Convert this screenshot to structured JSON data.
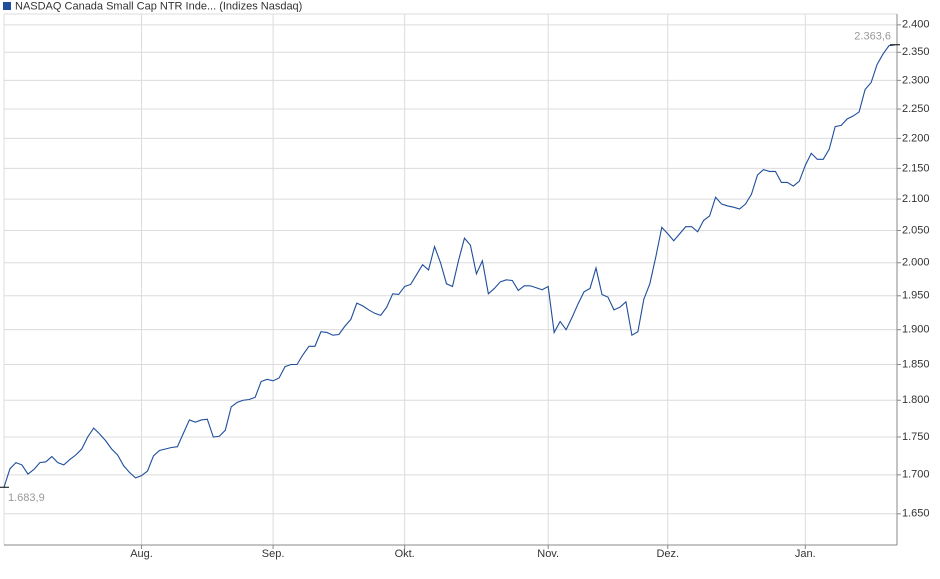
{
  "chart_data": {
    "type": "line",
    "title": "NASDAQ Canada Small Cap NTR Inde... (Indizes Nasdaq)",
    "color": "#1f4e9c",
    "log_scale": true,
    "grid": true,
    "categories": [
      null,
      null,
      null,
      null,
      null,
      null,
      null,
      null,
      null,
      null,
      null,
      null,
      null,
      null,
      null,
      null,
      null,
      null,
      null,
      null,
      null,
      null,
      null,
      "Aug.",
      null,
      null,
      null,
      null,
      null,
      null,
      null,
      null,
      null,
      null,
      null,
      null,
      null,
      null,
      null,
      null,
      null,
      null,
      null,
      null,
      null,
      "Sep.",
      null,
      null,
      null,
      null,
      null,
      null,
      null,
      null,
      null,
      null,
      null,
      null,
      null,
      null,
      null,
      null,
      null,
      null,
      null,
      null,
      null,
      "Okt.",
      null,
      null,
      null,
      null,
      null,
      null,
      null,
      null,
      null,
      null,
      null,
      null,
      null,
      null,
      null,
      null,
      null,
      null,
      null,
      null,
      null,
      null,
      null,
      "Nov.",
      null,
      null,
      null,
      null,
      null,
      null,
      null,
      null,
      null,
      null,
      null,
      null,
      null,
      null,
      null,
      null,
      null,
      null,
      null,
      "Dez.",
      null,
      null,
      null,
      null,
      null,
      null,
      null,
      null,
      null,
      null,
      null,
      null,
      null,
      null,
      null,
      null,
      null,
      null,
      null,
      null,
      null,
      null,
      "Jan.",
      null,
      null,
      null,
      null,
      null,
      null,
      null,
      null,
      null,
      null,
      null,
      null,
      null,
      null,
      null
    ],
    "values": [
      1683.9,
      1708,
      1716,
      1713,
      1701,
      1707,
      1716,
      1717,
      1724,
      1716,
      1713,
      1720,
      1726,
      1734,
      1750,
      1762,
      1754,
      1745,
      1734,
      1726,
      1712,
      1703,
      1696,
      1699,
      1705,
      1725,
      1732,
      1734,
      1736,
      1737,
      1755,
      1773,
      1770,
      1773,
      1774,
      1750,
      1751,
      1759,
      1791,
      1797,
      1800,
      1801,
      1804,
      1826,
      1829,
      1827,
      1831,
      1847,
      1850,
      1850,
      1864,
      1876,
      1876,
      1897,
      1896,
      1892,
      1893,
      1905,
      1915,
      1939,
      1935,
      1929,
      1924,
      1921,
      1933,
      1953,
      1952,
      1964,
      1967,
      1982,
      1997,
      1989,
      2025,
      2000,
      1968,
      1964,
      2003,
      2038,
      2027,
      1983,
      2003,
      1953,
      1961,
      1971,
      1974,
      1973,
      1958,
      1965,
      1965,
      1962,
      1959,
      1964,
      1896,
      1912,
      1900,
      1918,
      1938,
      1956,
      1961,
      1992,
      1952,
      1948,
      1929,
      1933,
      1941,
      1892,
      1897,
      1945,
      1968,
      2009,
      2055,
      2045,
      2034,
      2045,
      2056,
      2056,
      2048,
      2066,
      2073,
      2103,
      2092,
      2089,
      2087,
      2084,
      2092,
      2108,
      2139,
      2148,
      2145,
      2145,
      2127,
      2127,
      2121,
      2129,
      2155,
      2175,
      2165,
      2165,
      2182,
      2220,
      2222,
      2233,
      2238,
      2245,
      2284,
      2296,
      2328,
      2347,
      2362,
      2363.6
    ],
    "value_labels": [
      "1.683,9",
      null,
      null,
      null,
      null,
      null,
      null,
      null,
      null,
      null,
      null,
      null,
      null,
      null,
      null,
      null,
      null,
      null,
      null,
      null,
      null,
      null,
      null,
      null,
      null,
      null,
      null,
      null,
      null,
      null,
      null,
      null,
      null,
      null,
      null,
      null,
      null,
      null,
      null,
      null,
      null,
      null,
      null,
      null,
      null,
      null,
      null,
      null,
      null,
      null,
      null,
      null,
      null,
      null,
      null,
      null,
      null,
      null,
      null,
      null,
      null,
      null,
      null,
      null,
      null,
      null,
      null,
      null,
      null,
      null,
      null,
      null,
      null,
      null,
      null,
      null,
      null,
      null,
      null,
      null,
      null,
      null,
      null,
      null,
      null,
      null,
      null,
      null,
      null,
      null,
      null,
      null,
      null,
      null,
      null,
      null,
      null,
      null,
      null,
      null,
      null,
      null,
      null,
      null,
      null,
      null,
      null,
      null,
      null,
      null,
      null,
      null,
      null,
      null,
      null,
      null,
      null,
      null,
      null,
      null,
      null,
      null,
      null,
      null,
      null,
      null,
      null,
      null,
      null,
      null,
      null,
      null,
      null,
      null,
      null,
      null,
      null,
      null,
      null,
      null,
      null,
      null,
      null,
      null,
      null,
      null,
      null,
      null,
      null,
      "2.363,6"
    ],
    "ylim": [
      1611,
      2420
    ],
    "yticks": [
      {
        "value": 1650,
        "label": "1.650"
      },
      {
        "value": 1700,
        "label": "1.700"
      },
      {
        "value": 1750,
        "label": "1.750"
      },
      {
        "value": 1800,
        "label": "1.800"
      },
      {
        "value": 1850,
        "label": "1.850"
      },
      {
        "value": 1900,
        "label": "1.900"
      },
      {
        "value": 1950,
        "label": "1.950"
      },
      {
        "value": 2000,
        "label": "2.000"
      },
      {
        "value": 2050,
        "label": "2.050"
      },
      {
        "value": 2100,
        "label": "2.100"
      },
      {
        "value": 2150,
        "label": "2.150"
      },
      {
        "value": 2200,
        "label": "2.200"
      },
      {
        "value": 2250,
        "label": "2.250"
      },
      {
        "value": 2300,
        "label": "2.300"
      },
      {
        "value": 2350,
        "label": "2.350"
      },
      {
        "value": 2400,
        "label": "2.400"
      }
    ]
  }
}
